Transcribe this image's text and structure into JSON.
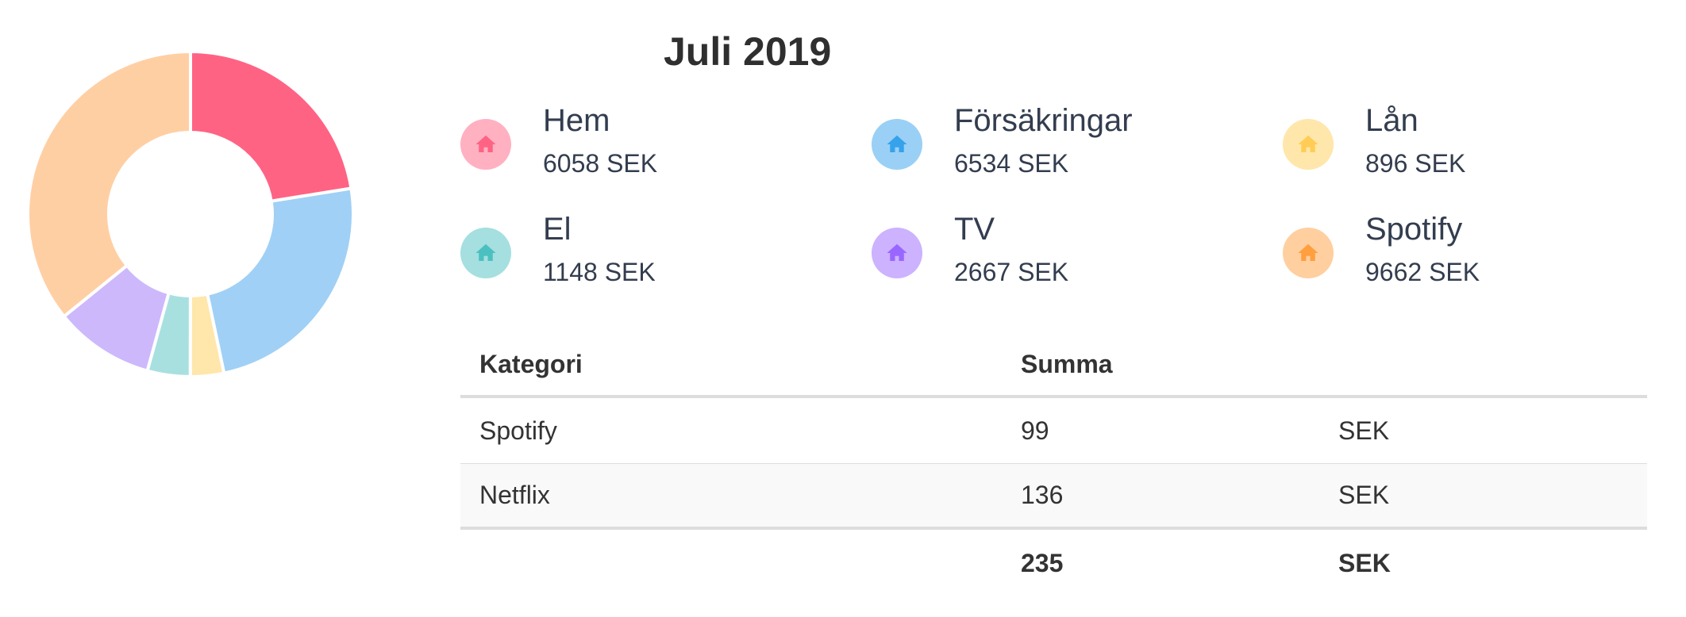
{
  "title": "Juli 2019",
  "chart_data": {
    "type": "pie",
    "donut": true,
    "slices": [
      {
        "label": "Hem",
        "value": 6058,
        "color": "#ff6384"
      },
      {
        "label": "Försäkringar",
        "value": 6534,
        "color": "#a0d0f5"
      },
      {
        "label": "Lån",
        "value": 896,
        "color": "#ffe6aa"
      },
      {
        "label": "El",
        "value": 1148,
        "color": "#a8e0e0"
      },
      {
        "label": "TV",
        "value": 2667,
        "color": "#cdb8fc"
      },
      {
        "label": "Spotify",
        "value": 9662,
        "color": "#ffcfa4"
      }
    ]
  },
  "categories": [
    {
      "name": "Hem",
      "amount": "6058 SEK",
      "icon": "home-icon",
      "bg": "#ffb1c1",
      "fg": "#ff6384"
    },
    {
      "name": "Försäkringar",
      "amount": "6534 SEK",
      "icon": "home-icon",
      "bg": "#9ad0f5",
      "fg": "#36a2eb"
    },
    {
      "name": "Lån",
      "amount": "896 SEK",
      "icon": "home-icon",
      "bg": "#ffe6aa",
      "fg": "#ffcd56"
    },
    {
      "name": "El",
      "amount": "1148 SEK",
      "icon": "home-icon",
      "bg": "#a5dfdf",
      "fg": "#4bc0c0"
    },
    {
      "name": "TV",
      "amount": "2667 SEK",
      "icon": "home-icon",
      "bg": "#ccb2ff",
      "fg": "#9966ff"
    },
    {
      "name": "Spotify",
      "amount": "9662 SEK",
      "icon": "home-icon",
      "bg": "#ffcf9f",
      "fg": "#ff9f40"
    }
  ],
  "table": {
    "headers": [
      "Kategori",
      "Summa",
      ""
    ],
    "rows": [
      {
        "category": "Spotify",
        "sum": "99",
        "currency": "SEK"
      },
      {
        "category": "Netflix",
        "sum": "136",
        "currency": "SEK"
      }
    ],
    "total": {
      "sum": "235",
      "currency": "SEK"
    }
  }
}
